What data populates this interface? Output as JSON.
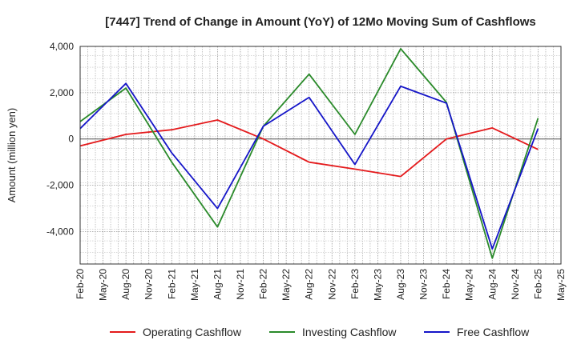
{
  "chart_data": {
    "type": "line",
    "title": "[7447]  Trend of Change in Amount (YoY) of 12Mo Moving Sum of Cashflows",
    "xlabel": "",
    "ylabel": "Amount (million yen)",
    "ylim": [
      -5400,
      4000
    ],
    "yticks": [
      4000,
      2000,
      0,
      -2000,
      -4000
    ],
    "ytick_labels": [
      "4,000",
      "2,000",
      "0",
      "-2,000",
      "-4,000"
    ],
    "categories": [
      "Feb-20",
      "May-20",
      "Aug-20",
      "Nov-20",
      "Feb-21",
      "May-21",
      "Aug-21",
      "Nov-21",
      "Feb-22",
      "May-22",
      "Aug-22",
      "Nov-22",
      "Feb-23",
      "May-23",
      "Aug-23",
      "Nov-23",
      "Feb-24",
      "May-24",
      "Aug-24",
      "Nov-24",
      "Feb-25",
      "May-25"
    ],
    "grid": true,
    "legend_position": "bottom",
    "series": [
      {
        "name": "Operating Cashflow",
        "color": "#e41a1c",
        "points": [
          {
            "x": "Feb-20",
            "y": -300
          },
          {
            "x": "Aug-20",
            "y": 200
          },
          {
            "x": "Feb-21",
            "y": 400
          },
          {
            "x": "Aug-21",
            "y": 820
          },
          {
            "x": "Feb-22",
            "y": 0
          },
          {
            "x": "Aug-22",
            "y": -1000
          },
          {
            "x": "Feb-23",
            "y": -1300
          },
          {
            "x": "Aug-23",
            "y": -1620
          },
          {
            "x": "Feb-24",
            "y": 0
          },
          {
            "x": "Aug-24",
            "y": 480
          },
          {
            "x": "Feb-25",
            "y": -450
          }
        ]
      },
      {
        "name": "Investing Cashflow",
        "color": "#2a8a2a",
        "points": [
          {
            "x": "Feb-20",
            "y": 750
          },
          {
            "x": "Aug-20",
            "y": 2200
          },
          {
            "x": "Feb-21",
            "y": -1000
          },
          {
            "x": "Aug-21",
            "y": -3800
          },
          {
            "x": "Feb-22",
            "y": 550
          },
          {
            "x": "Aug-22",
            "y": 2800
          },
          {
            "x": "Feb-23",
            "y": 200
          },
          {
            "x": "Aug-23",
            "y": 3900
          },
          {
            "x": "Feb-24",
            "y": 1580
          },
          {
            "x": "Aug-24",
            "y": -5150
          },
          {
            "x": "Feb-25",
            "y": 900
          }
        ]
      },
      {
        "name": "Free Cashflow",
        "color": "#1515c8",
        "points": [
          {
            "x": "Feb-20",
            "y": 450
          },
          {
            "x": "Aug-20",
            "y": 2400
          },
          {
            "x": "Feb-21",
            "y": -600
          },
          {
            "x": "Aug-21",
            "y": -3000
          },
          {
            "x": "Feb-22",
            "y": 550
          },
          {
            "x": "Aug-22",
            "y": 1800
          },
          {
            "x": "Feb-23",
            "y": -1100
          },
          {
            "x": "Aug-23",
            "y": 2280
          },
          {
            "x": "Feb-24",
            "y": 1550
          },
          {
            "x": "Aug-24",
            "y": -4750
          },
          {
            "x": "Feb-25",
            "y": 450
          }
        ]
      }
    ]
  }
}
